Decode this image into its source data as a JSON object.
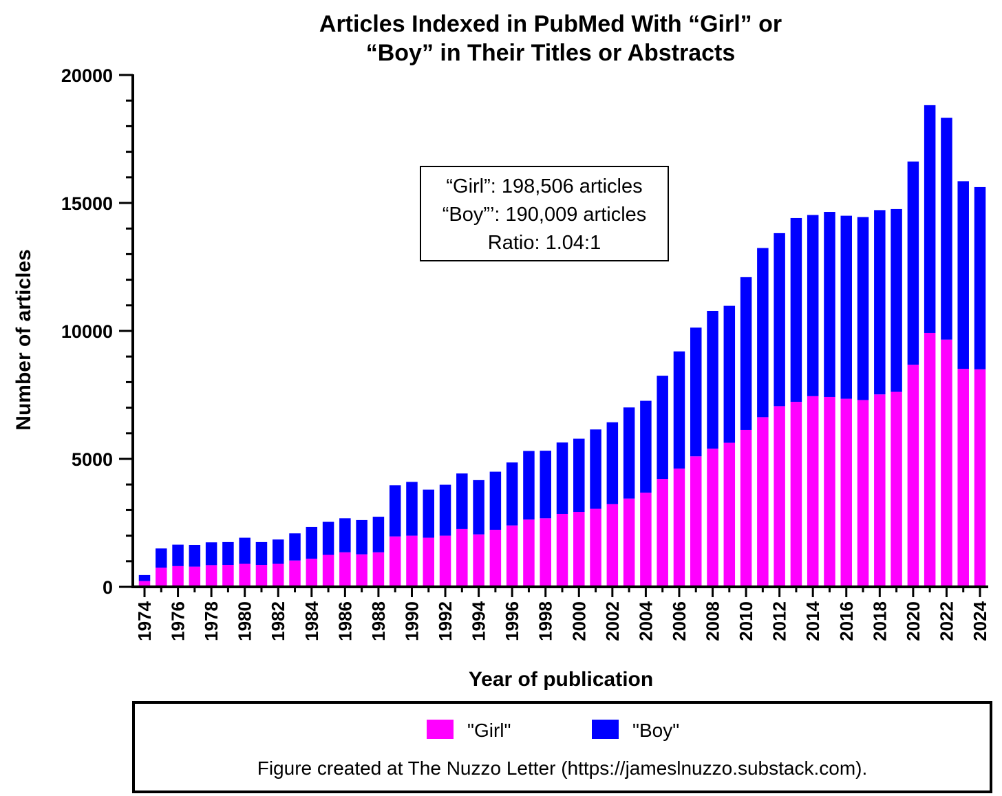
{
  "chart_data": {
    "type": "bar",
    "stacked": true,
    "title_lines": [
      "Articles Indexed in PubMed With “Girl” or",
      "“Boy” in Their Titles or Abstracts"
    ],
    "xlabel": "Year of publication",
    "ylabel": "Number of articles",
    "ylim": [
      0,
      20000
    ],
    "yticks": [
      "0",
      "5000",
      "10000",
      "15000",
      "20000"
    ],
    "categories": [
      "1974",
      "1975",
      "1976",
      "1977",
      "1978",
      "1979",
      "1980",
      "1981",
      "1982",
      "1983",
      "1984",
      "1985",
      "1986",
      "1987",
      "1988",
      "1989",
      "1990",
      "1991",
      "1992",
      "1993",
      "1994",
      "1995",
      "1996",
      "1997",
      "1998",
      "1999",
      "2000",
      "2001",
      "2002",
      "2003",
      "2004",
      "2005",
      "2006",
      "2007",
      "2008",
      "2009",
      "2010",
      "2011",
      "2012",
      "2013",
      "2014",
      "2015",
      "2016",
      "2017",
      "2018",
      "2019",
      "2020",
      "2021",
      "2022",
      "2023",
      "2024"
    ],
    "xtick_labels": [
      "1974",
      "1976",
      "1978",
      "1980",
      "1982",
      "1984",
      "1986",
      "1988",
      "1990",
      "1992",
      "1994",
      "1996",
      "1998",
      "2000",
      "2002",
      "2004",
      "2006",
      "2008",
      "2010",
      "2012",
      "2014",
      "2016",
      "2018",
      "2020",
      "2022",
      "2024"
    ],
    "series": [
      {
        "name": "\"Girl\"",
        "color": "#ff00ff",
        "values": [
          230,
          750,
          810,
          790,
          850,
          860,
          900,
          860,
          900,
          1030,
          1100,
          1250,
          1350,
          1270,
          1350,
          1970,
          2000,
          1920,
          2000,
          2260,
          2050,
          2230,
          2400,
          2630,
          2680,
          2850,
          2930,
          3050,
          3230,
          3450,
          3680,
          4220,
          4620,
          5100,
          5400,
          5630,
          6130,
          6630,
          7060,
          7230,
          7450,
          7420,
          7350,
          7300,
          7520,
          7620,
          8680,
          9920,
          9660,
          8520,
          8500
        ]
      },
      {
        "name": "\"Boy\"",
        "color": "#0000ff",
        "values": [
          230,
          750,
          840,
          850,
          890,
          890,
          1020,
          890,
          950,
          1060,
          1240,
          1290,
          1330,
          1340,
          1390,
          2000,
          2100,
          1880,
          1990,
          2170,
          2120,
          2270,
          2460,
          2680,
          2640,
          2790,
          2860,
          3100,
          3200,
          3560,
          3590,
          4030,
          4580,
          5030,
          5380,
          5350,
          5970,
          6610,
          6760,
          7180,
          7080,
          7230,
          7150,
          7150,
          7200,
          7140,
          7940,
          8900,
          8670,
          7330,
          7120
        ]
      }
    ],
    "annotation_lines": [
      "“Girl”: 198,506 articles",
      "“Boy”’: 190,009 articles",
      "Ratio: 1.04:1"
    ],
    "legend": {
      "position": "bottom",
      "entries": [
        "\"Girl\"",
        "\"Boy\""
      ]
    }
  },
  "footer": {
    "credit": "Figure created at The Nuzzo Letter (https://jameslnuzzo.substack.com)."
  }
}
